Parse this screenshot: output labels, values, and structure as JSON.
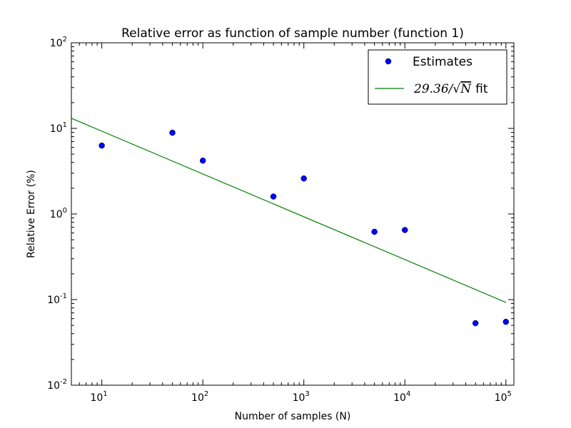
{
  "chart_data": {
    "type": "scatter",
    "title": "Relative error as function of sample number (function 1)",
    "xlabel": "Number of samples (N)",
    "ylabel": "Relative Error (%)",
    "xscale": "log",
    "yscale": "log",
    "xlim": [
      5,
      120000
    ],
    "ylim": [
      0.01,
      100
    ],
    "grid": false,
    "legend_position": "top-right",
    "x_ticks": [
      {
        "value": 10,
        "base": "10",
        "exp": "1"
      },
      {
        "value": 100,
        "base": "10",
        "exp": "2"
      },
      {
        "value": 1000,
        "base": "10",
        "exp": "3"
      },
      {
        "value": 10000,
        "base": "10",
        "exp": "4"
      },
      {
        "value": 100000,
        "base": "10",
        "exp": "5"
      }
    ],
    "y_ticks": [
      {
        "value": 0.01,
        "base": "10",
        "exp": "-2"
      },
      {
        "value": 0.1,
        "base": "10",
        "exp": "-1"
      },
      {
        "value": 1,
        "base": "10",
        "exp": "0"
      },
      {
        "value": 10,
        "base": "10",
        "exp": "1"
      },
      {
        "value": 100,
        "base": "10",
        "exp": "2"
      }
    ],
    "series": [
      {
        "name": "Estimates",
        "kind": "scatter",
        "color": "#0000ff",
        "x": [
          10,
          50,
          100,
          500,
          1000,
          5000,
          10000,
          50000,
          100000
        ],
        "y": [
          6.3,
          8.9,
          4.2,
          1.6,
          2.6,
          0.62,
          0.65,
          0.053,
          0.055
        ]
      },
      {
        "name": "29.36/√N fit",
        "kind": "line",
        "color": "#008000",
        "coefficient": 29.36,
        "x": [
          5,
          100000
        ],
        "y": [
          13.13,
          0.0928
        ]
      }
    ],
    "legend": {
      "estimates_label": "Estimates",
      "fit_label_math": "29.36/",
      "fit_label_sqrt": "√",
      "fit_label_var": "N",
      "fit_label_suffix": "fit"
    }
  }
}
